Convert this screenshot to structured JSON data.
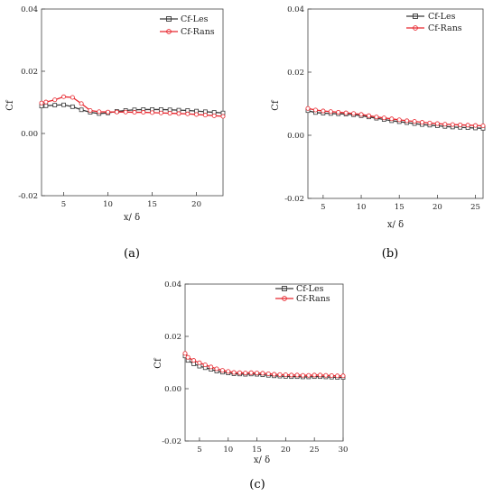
{
  "chart_data": [
    {
      "type": "line",
      "caption": "(a)",
      "xlabel": "x/ δ",
      "ylabel": "Cf",
      "xlim": [
        2.5,
        23
      ],
      "ylim": [
        -0.02,
        0.04
      ],
      "xticks": [
        "5",
        "10",
        "15",
        "20"
      ],
      "yticks": [
        "0.04",
        "0.02",
        "0.00",
        "-0.02"
      ],
      "legend_position": "top-right",
      "series": [
        {
          "name": "Cf-Les",
          "color": "#3a3a3a",
          "marker": "square",
          "x": [
            2.5,
            3,
            4,
            5,
            6,
            7,
            8,
            9,
            10,
            11,
            12,
            13,
            14,
            15,
            16,
            17,
            18,
            19,
            20,
            21,
            22,
            23
          ],
          "y": [
            0.0088,
            0.0089,
            0.0091,
            0.0092,
            0.0086,
            0.0076,
            0.0068,
            0.0064,
            0.0066,
            0.0071,
            0.0074,
            0.0076,
            0.0077,
            0.0077,
            0.0077,
            0.0076,
            0.0075,
            0.0074,
            0.0072,
            0.007,
            0.0068,
            0.0066
          ]
        },
        {
          "name": "Cf-Rans",
          "color": "#e8262d",
          "marker": "circle",
          "x": [
            2.5,
            3,
            4,
            5,
            6,
            7,
            8,
            9,
            10,
            11,
            12,
            13,
            14,
            15,
            16,
            17,
            18,
            19,
            20,
            21,
            22,
            23
          ],
          "y": [
            0.0098,
            0.0101,
            0.0108,
            0.0118,
            0.0116,
            0.0096,
            0.0074,
            0.007,
            0.0069,
            0.0069,
            0.0069,
            0.0068,
            0.0068,
            0.0067,
            0.0066,
            0.0065,
            0.0064,
            0.0063,
            0.0061,
            0.0059,
            0.0057,
            0.0055
          ]
        }
      ]
    },
    {
      "type": "line",
      "caption": "(b)",
      "xlabel": "x/ δ",
      "ylabel": "Cf",
      "xlim": [
        3,
        26
      ],
      "ylim": [
        -0.02,
        0.04
      ],
      "xticks": [
        "5",
        "10",
        "15",
        "20",
        "25"
      ],
      "yticks": [
        "0.04",
        "0.02",
        "0.00",
        "-0.02"
      ],
      "legend_position": "top-right",
      "series": [
        {
          "name": "Cf-Les",
          "color": "#3a3a3a",
          "marker": "square",
          "x": [
            3,
            4,
            5,
            6,
            7,
            8,
            9,
            10,
            11,
            12,
            13,
            14,
            15,
            16,
            17,
            18,
            19,
            20,
            21,
            22,
            23,
            24,
            25,
            26
          ],
          "y": [
            0.0078,
            0.0072,
            0.007,
            0.0069,
            0.0068,
            0.0067,
            0.0065,
            0.0062,
            0.0058,
            0.0054,
            0.005,
            0.0046,
            0.0043,
            0.004,
            0.0037,
            0.0034,
            0.0032,
            0.003,
            0.0028,
            0.0026,
            0.0025,
            0.0024,
            0.0023,
            0.0022
          ]
        },
        {
          "name": "Cf-Rans",
          "color": "#e8262d",
          "marker": "circle",
          "x": [
            3,
            4,
            5,
            6,
            7,
            8,
            9,
            10,
            11,
            12,
            13,
            14,
            15,
            16,
            17,
            18,
            19,
            20,
            21,
            22,
            23,
            24,
            25,
            26
          ],
          "y": [
            0.0085,
            0.008,
            0.0077,
            0.0075,
            0.0073,
            0.0071,
            0.0069,
            0.0066,
            0.0062,
            0.0058,
            0.0055,
            0.0052,
            0.0049,
            0.0046,
            0.0044,
            0.0041,
            0.0039,
            0.0037,
            0.0035,
            0.0034,
            0.0033,
            0.0032,
            0.0031,
            0.003
          ]
        }
      ]
    },
    {
      "type": "line",
      "caption": "(c)",
      "xlabel": "x/ δ",
      "ylabel": "Cf",
      "xlim": [
        2.5,
        30
      ],
      "ylim": [
        -0.02,
        0.04
      ],
      "xticks": [
        "5",
        "10",
        "15",
        "20",
        "25",
        "30"
      ],
      "yticks": [
        "0.04",
        "0.02",
        "0.00",
        "-0.02"
      ],
      "legend_position": "top-right",
      "series": [
        {
          "name": "Cf-Les",
          "color": "#3a3a3a",
          "marker": "square",
          "x": [
            2.5,
            3,
            4,
            5,
            6,
            7,
            8,
            9,
            10,
            11,
            12,
            13,
            14,
            15,
            16,
            17,
            18,
            19,
            20,
            21,
            22,
            23,
            24,
            25,
            26,
            27,
            28,
            29,
            30
          ],
          "y": [
            0.0125,
            0.0108,
            0.0095,
            0.0086,
            0.008,
            0.0074,
            0.0067,
            0.0063,
            0.006,
            0.0057,
            0.0056,
            0.0055,
            0.0056,
            0.0055,
            0.0053,
            0.0051,
            0.0049,
            0.0048,
            0.0047,
            0.0046,
            0.0046,
            0.0045,
            0.0045,
            0.0046,
            0.0046,
            0.0045,
            0.0044,
            0.0043,
            0.0043
          ]
        },
        {
          "name": "Cf-Rans",
          "color": "#e8262d",
          "marker": "circle",
          "x": [
            2.5,
            3,
            4,
            5,
            6,
            7,
            8,
            9,
            10,
            11,
            12,
            13,
            14,
            15,
            16,
            17,
            18,
            19,
            20,
            21,
            22,
            23,
            24,
            25,
            26,
            27,
            28,
            29,
            30
          ],
          "y": [
            0.0135,
            0.012,
            0.0108,
            0.0099,
            0.0091,
            0.0083,
            0.0076,
            0.007,
            0.0066,
            0.0062,
            0.0061,
            0.006,
            0.0061,
            0.006,
            0.0059,
            0.0057,
            0.0055,
            0.0054,
            0.0053,
            0.0052,
            0.0052,
            0.0051,
            0.0051,
            0.0052,
            0.0052,
            0.0051,
            0.005,
            0.0049,
            0.0049
          ]
        }
      ]
    }
  ]
}
